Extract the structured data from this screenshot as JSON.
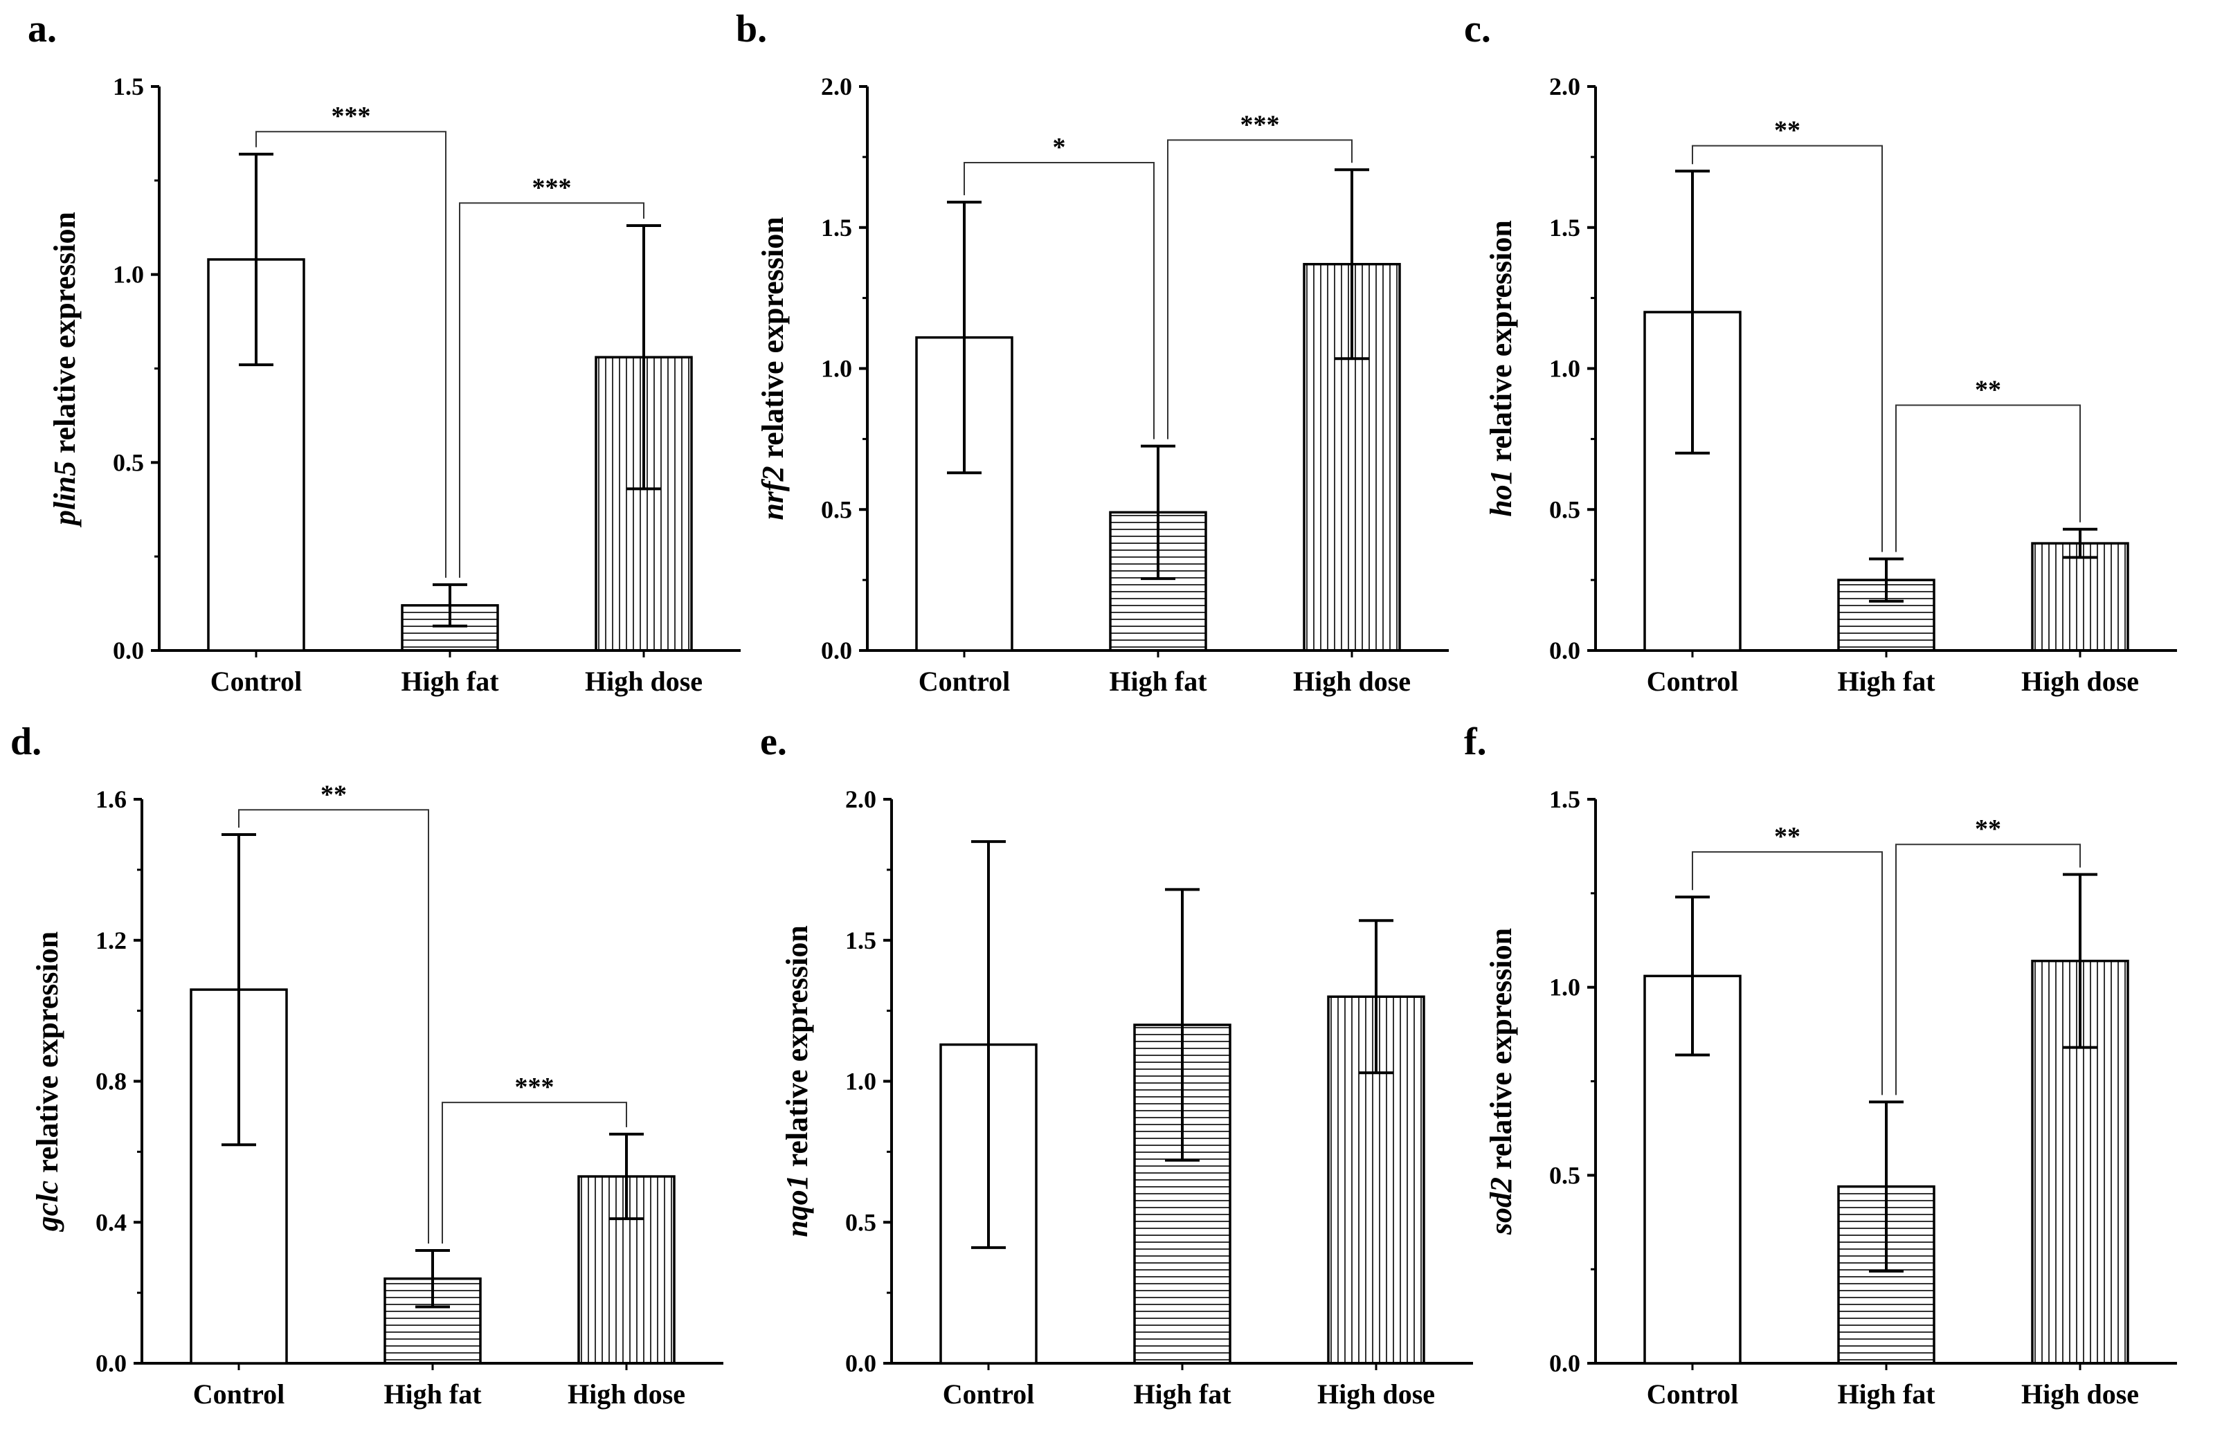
{
  "chart_data": [
    {
      "type": "bar",
      "panel": "a.",
      "gene": "plin5",
      "ylabel_suffix": " relative expression",
      "categories": [
        "Control",
        "High fat",
        "High dose"
      ],
      "values": [
        1.04,
        0.12,
        0.78
      ],
      "errors": [
        0.28,
        0.055,
        0.35
      ],
      "ylim": [
        0,
        1.5
      ],
      "yticks": [
        "0.0",
        "0.5",
        "1.0",
        "1.5"
      ],
      "patterns": [
        "none",
        "horizontal",
        "vertical"
      ],
      "significance": [
        {
          "from": 0,
          "to": 1,
          "label": "***",
          "level": 1.38
        },
        {
          "from": 1,
          "to": 2,
          "label": "***",
          "level": 1.19
        }
      ]
    },
    {
      "type": "bar",
      "panel": "b.",
      "gene": "nrf2",
      "ylabel_suffix": " relative expression",
      "categories": [
        "Control",
        "High fat",
        "High dose"
      ],
      "values": [
        1.11,
        0.49,
        1.37
      ],
      "errors": [
        0.48,
        0.235,
        0.335
      ],
      "ylim": [
        0,
        2.0
      ],
      "yticks": [
        "0.0",
        "0.5",
        "1.0",
        "1.5",
        "2.0"
      ],
      "patterns": [
        "none",
        "horizontal",
        "vertical"
      ],
      "significance": [
        {
          "from": 0,
          "to": 1,
          "label": "*",
          "level": 1.73
        },
        {
          "from": 1,
          "to": 2,
          "label": "***",
          "level": 1.81
        }
      ]
    },
    {
      "type": "bar",
      "panel": "c.",
      "gene": "ho1",
      "ylabel_suffix": " relative expression",
      "categories": [
        "Control",
        "High fat",
        "High dose"
      ],
      "values": [
        1.2,
        0.25,
        0.38
      ],
      "errors": [
        0.5,
        0.075,
        0.05
      ],
      "ylim": [
        0,
        2.0
      ],
      "yticks": [
        "0.0",
        "0.5",
        "1.0",
        "1.5",
        "2.0"
      ],
      "patterns": [
        "none",
        "horizontal",
        "vertical"
      ],
      "significance": [
        {
          "from": 0,
          "to": 1,
          "label": "**",
          "level": 1.79
        },
        {
          "from": 1,
          "to": 2,
          "label": "**",
          "level": 0.87
        }
      ]
    },
    {
      "type": "bar",
      "panel": "d.",
      "gene": "gclc",
      "ylabel_suffix": " relative expression",
      "categories": [
        "Control",
        "High fat",
        "High dose"
      ],
      "values": [
        1.06,
        0.24,
        0.53
      ],
      "errors": [
        0.44,
        0.08,
        0.12
      ],
      "ylim": [
        0,
        1.6
      ],
      "yticks": [
        "0.0",
        "0.4",
        "0.8",
        "1.2",
        "1.6"
      ],
      "patterns": [
        "none",
        "horizontal",
        "vertical"
      ],
      "significance": [
        {
          "from": 0,
          "to": 1,
          "label": "**",
          "level": 1.57
        },
        {
          "from": 1,
          "to": 2,
          "label": "***",
          "level": 0.74
        }
      ]
    },
    {
      "type": "bar",
      "panel": "e.",
      "gene": "nqo1",
      "ylabel_suffix": " relative expression",
      "categories": [
        "Control",
        "High fat",
        "High dose"
      ],
      "values": [
        1.13,
        1.2,
        1.3
      ],
      "errors": [
        0.72,
        0.48,
        0.27
      ],
      "ylim": [
        0,
        2.0
      ],
      "yticks": [
        "0.0",
        "0.5",
        "1.0",
        "1.5",
        "2.0"
      ],
      "patterns": [
        "none",
        "horizontal",
        "vertical"
      ],
      "significance": []
    },
    {
      "type": "bar",
      "panel": "f.",
      "gene": "sod2",
      "ylabel_suffix": " relative expression",
      "categories": [
        "Control",
        "High fat",
        "High dose"
      ],
      "values": [
        1.03,
        0.47,
        1.07
      ],
      "errors": [
        0.21,
        0.225,
        0.23
      ],
      "ylim": [
        0,
        1.5
      ],
      "yticks": [
        "0.0",
        "0.5",
        "1.0",
        "1.5"
      ],
      "patterns": [
        "none",
        "horizontal",
        "vertical"
      ],
      "significance": [
        {
          "from": 0,
          "to": 1,
          "label": "**",
          "level": 1.36
        },
        {
          "from": 1,
          "to": 2,
          "label": "**",
          "level": 1.38
        }
      ]
    }
  ]
}
